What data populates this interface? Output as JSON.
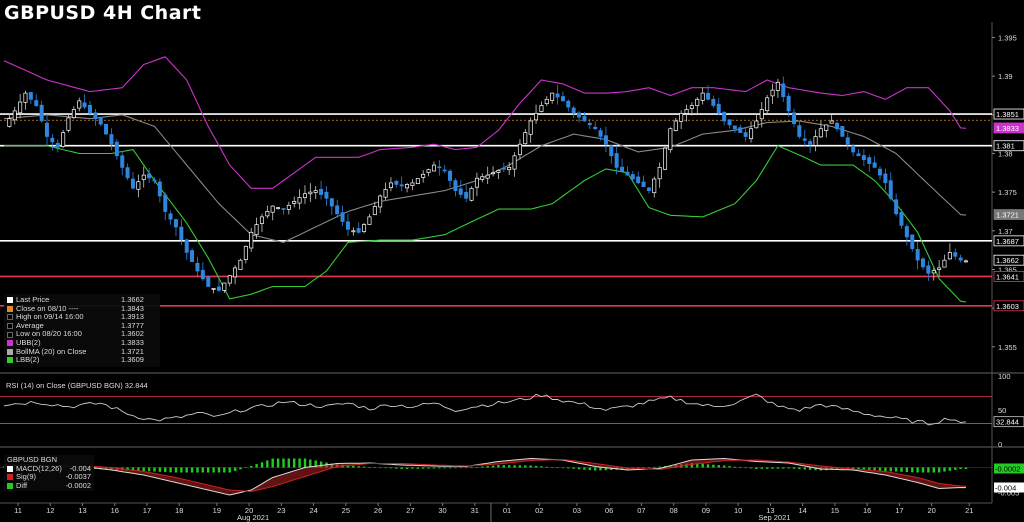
{
  "title": "GBPUSD 4H Chart",
  "colors": {
    "up": "#ffffff",
    "down": "#2e86de",
    "ubb": "#cc33cc",
    "lbb": "#33cc33",
    "ma": "#888888",
    "hline_white": "#ffffff",
    "hline_red": "#e8384f",
    "rsi": "#cccccc",
    "macd": "#ffffff",
    "signal": "#cc2222",
    "diff": "#22cc22"
  },
  "legend": [
    {
      "label": "Last Price",
      "value": "1.3662",
      "color": "#ffffff"
    },
    {
      "label": "Close on 08/10 ----",
      "value": "1.3843",
      "color": "#e08a1e"
    },
    {
      "label": "High on 09/14 16:00",
      "value": "1.3913",
      "color": "#000000"
    },
    {
      "label": "Average",
      "value": "1.3777",
      "color": "#000000"
    },
    {
      "label": "Low on 08/20 16:00",
      "value": "1.3602",
      "color": "#000000"
    },
    {
      "label": "UBB(2)",
      "value": "1.3833",
      "color": "#cc33cc"
    },
    {
      "label": "BollMA (20)  on Close",
      "value": "1.3721",
      "color": "#aaaaaa"
    },
    {
      "label": "LBB(2)",
      "value": "1.3609",
      "color": "#33cc33"
    }
  ],
  "rsi_label": "RSI (14)  on Close (GBPUSD BGN) 32.844",
  "macd_title": "GBPUSD BGN",
  "macd_legend": [
    {
      "label": "MACD(12,26)",
      "value": "-0.004",
      "color": "#ffffff"
    },
    {
      "label": "Sig(9)",
      "value": "-0.0037",
      "color": "#cc2222"
    },
    {
      "label": "Diff",
      "value": "-0.0002",
      "color": "#22cc22"
    }
  ],
  "price_ticks": [
    "1.395",
    "1.39",
    "1.385",
    "1.38",
    "1.375",
    "1.37",
    "1.365",
    "1.36",
    "1.355"
  ],
  "rsi_ticks": [
    "100",
    "50",
    "0"
  ],
  "macd_ticks": [
    "0",
    "-0.005"
  ],
  "price_tags": [
    {
      "value": 1.3851,
      "text": "1.3851",
      "bg": "#000000",
      "fg": "#ffffff",
      "border": "#ffffff"
    },
    {
      "value": 1.3833,
      "text": "1.3833",
      "bg": "#cc33cc",
      "fg": "#ffffff",
      "border": "#cc33cc"
    },
    {
      "value": 1.381,
      "text": "1.381",
      "bg": "#000000",
      "fg": "#ffffff",
      "border": "#ffffff"
    },
    {
      "value": 1.3721,
      "text": "1.3721",
      "bg": "#777777",
      "fg": "#ffffff",
      "border": "#777777"
    },
    {
      "value": 1.3687,
      "text": "1.3687",
      "bg": "#000000",
      "fg": "#ffffff",
      "border": "#ffffff"
    },
    {
      "value": 1.3662,
      "text": "1.3662",
      "bg": "#000000",
      "fg": "#ffffff",
      "border": "#ffffff"
    },
    {
      "value": 1.3641,
      "text": "1.3641",
      "bg": "#000000",
      "fg": "#ffffff",
      "border": "#e8384f"
    },
    {
      "value": 1.3603,
      "text": "1.3603",
      "bg": "#000000",
      "fg": "#ffffff",
      "border": "#e8384f"
    }
  ],
  "rsi_tag": {
    "value": 32.844,
    "text": "32.844"
  },
  "macd_tags": [
    {
      "value": -0.0002,
      "text": "-0.0002",
      "bg": "#22cc22",
      "fg": "#000000"
    },
    {
      "value": -0.004,
      "text": "-0.004",
      "bg": "#ffffff",
      "fg": "#000000"
    }
  ],
  "chart_data": {
    "type": "candlestick",
    "title": "GBPUSD 4H Chart",
    "xlabel": "",
    "ylabel": "",
    "ylim": [
      1.352,
      1.397
    ],
    "day_labels": [
      "11",
      "12",
      "13",
      "16",
      "17",
      "18",
      "19",
      "20",
      "23",
      "24",
      "25",
      "26",
      "27",
      "30",
      "31",
      "01",
      "02",
      "03",
      "06",
      "07",
      "08",
      "09",
      "10",
      "13",
      "14",
      "15",
      "16",
      "17",
      "20",
      "21"
    ],
    "month_labels": [
      {
        "text": "Aug 2021",
        "at_day_index": 7
      },
      {
        "text": "Sep 2021",
        "at_day_index": 23
      }
    ],
    "month_separator_day_index": 15,
    "horizontal_levels": [
      {
        "value": 1.3851,
        "color": "white"
      },
      {
        "value": 1.381,
        "color": "white"
      },
      {
        "value": 1.3687,
        "color": "white"
      },
      {
        "value": 1.3641,
        "color": "red"
      },
      {
        "value": 1.3603,
        "color": "red"
      }
    ],
    "close_dotted": 1.3843,
    "close_anchors": [
      [
        0,
        1.3835
      ],
      [
        2,
        1.3855
      ],
      [
        4,
        1.3878
      ],
      [
        6,
        1.3862
      ],
      [
        8,
        1.3822
      ],
      [
        10,
        1.3808
      ],
      [
        12,
        1.3846
      ],
      [
        14,
        1.3868
      ],
      [
        16,
        1.3852
      ],
      [
        18,
        1.3838
      ],
      [
        20,
        1.3812
      ],
      [
        22,
        1.3782
      ],
      [
        24,
        1.3755
      ],
      [
        26,
        1.3772
      ],
      [
        28,
        1.3765
      ],
      [
        30,
        1.3725
      ],
      [
        32,
        1.3705
      ],
      [
        34,
        1.3672
      ],
      [
        36,
        1.3648
      ],
      [
        38,
        1.3628
      ],
      [
        40,
        1.3623
      ],
      [
        42,
        1.3642
      ],
      [
        44,
        1.3662
      ],
      [
        46,
        1.3698
      ],
      [
        48,
        1.3718
      ],
      [
        50,
        1.3732
      ],
      [
        52,
        1.3728
      ],
      [
        54,
        1.3738
      ],
      [
        56,
        1.3748
      ],
      [
        58,
        1.3752
      ],
      [
        60,
        1.3742
      ],
      [
        62,
        1.3722
      ],
      [
        64,
        1.3702
      ],
      [
        66,
        1.3698
      ],
      [
        68,
        1.3718
      ],
      [
        70,
        1.3745
      ],
      [
        72,
        1.3762
      ],
      [
        74,
        1.3758
      ],
      [
        76,
        1.3762
      ],
      [
        78,
        1.3773
      ],
      [
        80,
        1.3785
      ],
      [
        82,
        1.3778
      ],
      [
        84,
        1.3752
      ],
      [
        86,
        1.3742
      ],
      [
        88,
        1.3768
      ],
      [
        90,
        1.3772
      ],
      [
        92,
        1.3778
      ],
      [
        94,
        1.3782
      ],
      [
        96,
        1.3812
      ],
      [
        98,
        1.3842
      ],
      [
        100,
        1.3862
      ],
      [
        102,
        1.3878
      ],
      [
        104,
        1.3868
      ],
      [
        106,
        1.3852
      ],
      [
        108,
        1.3842
      ],
      [
        110,
        1.3832
      ],
      [
        112,
        1.3812
      ],
      [
        114,
        1.3782
      ],
      [
        116,
        1.3772
      ],
      [
        118,
        1.3762
      ],
      [
        120,
        1.3752
      ],
      [
        122,
        1.3782
      ],
      [
        124,
        1.3832
      ],
      [
        126,
        1.3852
      ],
      [
        128,
        1.3862
      ],
      [
        130,
        1.3878
      ],
      [
        132,
        1.3862
      ],
      [
        134,
        1.3842
      ],
      [
        136,
        1.3832
      ],
      [
        138,
        1.3822
      ],
      [
        140,
        1.3842
      ],
      [
        142,
        1.3872
      ],
      [
        144,
        1.3892
      ],
      [
        146,
        1.3855
      ],
      [
        148,
        1.3822
      ],
      [
        150,
        1.3812
      ],
      [
        152,
        1.3832
      ],
      [
        154,
        1.3842
      ],
      [
        156,
        1.3822
      ],
      [
        158,
        1.3802
      ],
      [
        160,
        1.3792
      ],
      [
        162,
        1.3782
      ],
      [
        164,
        1.3762
      ],
      [
        166,
        1.3722
      ],
      [
        168,
        1.3692
      ],
      [
        170,
        1.3662
      ],
      [
        172,
        1.3645
      ],
      [
        174,
        1.3652
      ],
      [
        176,
        1.3672
      ],
      [
        178,
        1.3662
      ]
    ],
    "ubb_anchors": [
      [
        0,
        1.392
      ],
      [
        8,
        1.3895
      ],
      [
        16,
        1.388
      ],
      [
        22,
        1.3885
      ],
      [
        26,
        1.3915
      ],
      [
        30,
        1.3925
      ],
      [
        34,
        1.3895
      ],
      [
        38,
        1.3835
      ],
      [
        42,
        1.3785
      ],
      [
        46,
        1.3755
      ],
      [
        50,
        1.3755
      ],
      [
        54,
        1.3775
      ],
      [
        58,
        1.3795
      ],
      [
        62,
        1.3795
      ],
      [
        66,
        1.3795
      ],
      [
        70,
        1.3805
      ],
      [
        76,
        1.3808
      ],
      [
        80,
        1.3812
      ],
      [
        84,
        1.3805
      ],
      [
        88,
        1.3808
      ],
      [
        92,
        1.383
      ],
      [
        96,
        1.3865
      ],
      [
        100,
        1.3895
      ],
      [
        104,
        1.389
      ],
      [
        108,
        1.3878
      ],
      [
        112,
        1.3878
      ],
      [
        116,
        1.388
      ],
      [
        120,
        1.3885
      ],
      [
        124,
        1.3875
      ],
      [
        128,
        1.3885
      ],
      [
        132,
        1.3885
      ],
      [
        138,
        1.388
      ],
      [
        142,
        1.3895
      ],
      [
        146,
        1.3885
      ],
      [
        152,
        1.3878
      ],
      [
        156,
        1.3875
      ],
      [
        160,
        1.388
      ],
      [
        164,
        1.387
      ],
      [
        168,
        1.3885
      ],
      [
        172,
        1.3885
      ],
      [
        176,
        1.3855
      ],
      [
        178,
        1.3833
      ]
    ],
    "ma_anchors": [
      [
        0,
        1.3845
      ],
      [
        8,
        1.385
      ],
      [
        16,
        1.3845
      ],
      [
        22,
        1.385
      ],
      [
        28,
        1.3835
      ],
      [
        34,
        1.3785
      ],
      [
        40,
        1.3735
      ],
      [
        46,
        1.3695
      ],
      [
        52,
        1.3685
      ],
      [
        58,
        1.3705
      ],
      [
        64,
        1.3725
      ],
      [
        70,
        1.3738
      ],
      [
        76,
        1.3745
      ],
      [
        82,
        1.3752
      ],
      [
        88,
        1.3765
      ],
      [
        94,
        1.3785
      ],
      [
        100,
        1.381
      ],
      [
        106,
        1.3825
      ],
      [
        112,
        1.3818
      ],
      [
        118,
        1.3802
      ],
      [
        124,
        1.3808
      ],
      [
        130,
        1.3825
      ],
      [
        136,
        1.383
      ],
      [
        142,
        1.384
      ],
      [
        148,
        1.3842
      ],
      [
        154,
        1.3835
      ],
      [
        160,
        1.3822
      ],
      [
        166,
        1.38
      ],
      [
        172,
        1.376
      ],
      [
        178,
        1.3721
      ]
    ],
    "lbb_anchors": [
      [
        0,
        1.381
      ],
      [
        8,
        1.381
      ],
      [
        14,
        1.38
      ],
      [
        20,
        1.38
      ],
      [
        24,
        1.3805
      ],
      [
        28,
        1.3765
      ],
      [
        34,
        1.371
      ],
      [
        38,
        1.3665
      ],
      [
        42,
        1.3612
      ],
      [
        46,
        1.3618
      ],
      [
        50,
        1.3628
      ],
      [
        56,
        1.3628
      ],
      [
        60,
        1.3648
      ],
      [
        64,
        1.3685
      ],
      [
        70,
        1.3688
      ],
      [
        76,
        1.3688
      ],
      [
        82,
        1.3695
      ],
      [
        88,
        1.3715
      ],
      [
        92,
        1.3728
      ],
      [
        98,
        1.3728
      ],
      [
        102,
        1.3735
      ],
      [
        108,
        1.3765
      ],
      [
        112,
        1.378
      ],
      [
        116,
        1.3775
      ],
      [
        120,
        1.373
      ],
      [
        124,
        1.372
      ],
      [
        130,
        1.3718
      ],
      [
        136,
        1.3735
      ],
      [
        140,
        1.3765
      ],
      [
        144,
        1.381
      ],
      [
        148,
        1.3798
      ],
      [
        152,
        1.3785
      ],
      [
        158,
        1.3785
      ],
      [
        162,
        1.3765
      ],
      [
        166,
        1.3735
      ],
      [
        170,
        1.3698
      ],
      [
        174,
        1.3638
      ],
      [
        178,
        1.3609
      ]
    ],
    "rsi": {
      "ylim": [
        0,
        100
      ],
      "overbought": 70,
      "oversold": 30,
      "anchors": [
        [
          0,
          58
        ],
        [
          6,
          62
        ],
        [
          12,
          55
        ],
        [
          18,
          60
        ],
        [
          24,
          42
        ],
        [
          28,
          35
        ],
        [
          32,
          38
        ],
        [
          36,
          45
        ],
        [
          40,
          40
        ],
        [
          44,
          50
        ],
        [
          48,
          55
        ],
        [
          52,
          62
        ],
        [
          56,
          58
        ],
        [
          60,
          55
        ],
        [
          64,
          60
        ],
        [
          68,
          52
        ],
        [
          72,
          58
        ],
        [
          76,
          55
        ],
        [
          80,
          60
        ],
        [
          84,
          50
        ],
        [
          88,
          56
        ],
        [
          92,
          60
        ],
        [
          96,
          65
        ],
        [
          100,
          72
        ],
        [
          104,
          64
        ],
        [
          108,
          58
        ],
        [
          112,
          50
        ],
        [
          116,
          55
        ],
        [
          120,
          62
        ],
        [
          124,
          68
        ],
        [
          128,
          60
        ],
        [
          132,
          55
        ],
        [
          136,
          60
        ],
        [
          140,
          72
        ],
        [
          144,
          55
        ],
        [
          148,
          50
        ],
        [
          152,
          58
        ],
        [
          156,
          52
        ],
        [
          160,
          45
        ],
        [
          164,
          40
        ],
        [
          168,
          35
        ],
        [
          172,
          30
        ],
        [
          176,
          38
        ],
        [
          178,
          32.844
        ]
      ]
    },
    "macd": {
      "ylim": [
        -0.0065,
        0.0035
      ],
      "macd_anchors": [
        [
          0,
          0.0005
        ],
        [
          8,
          0.0004
        ],
        [
          14,
          0.0003
        ],
        [
          20,
          -0.0005
        ],
        [
          26,
          -0.0015
        ],
        [
          32,
          -0.003
        ],
        [
          38,
          -0.0045
        ],
        [
          42,
          -0.0055
        ],
        [
          46,
          -0.0045
        ],
        [
          50,
          -0.002
        ],
        [
          56,
          0.0
        ],
        [
          62,
          0.0008
        ],
        [
          68,
          0.0009
        ],
        [
          74,
          0.0005
        ],
        [
          80,
          0.0003
        ],
        [
          86,
          0.0002
        ],
        [
          92,
          0.0012
        ],
        [
          98,
          0.0018
        ],
        [
          104,
          0.0015
        ],
        [
          110,
          0.0002
        ],
        [
          116,
          -0.0005
        ],
        [
          122,
          -0.0002
        ],
        [
          128,
          0.0015
        ],
        [
          134,
          0.0018
        ],
        [
          140,
          0.0012
        ],
        [
          146,
          0.0009
        ],
        [
          152,
          -0.0003
        ],
        [
          158,
          -0.0005
        ],
        [
          164,
          -0.0015
        ],
        [
          170,
          -0.003
        ],
        [
          174,
          -0.0042
        ],
        [
          178,
          -0.004
        ]
      ],
      "signal_anchors": [
        [
          0,
          0.0003
        ],
        [
          8,
          0.0004
        ],
        [
          14,
          0.0004
        ],
        [
          20,
          0.0
        ],
        [
          26,
          -0.0008
        ],
        [
          32,
          -0.002
        ],
        [
          38,
          -0.0035
        ],
        [
          42,
          -0.0045
        ],
        [
          46,
          -0.0048
        ],
        [
          50,
          -0.0038
        ],
        [
          56,
          -0.0018
        ],
        [
          62,
          0.0002
        ],
        [
          68,
          0.0008
        ],
        [
          74,
          0.0008
        ],
        [
          80,
          0.0005
        ],
        [
          86,
          0.0003
        ],
        [
          92,
          0.0007
        ],
        [
          98,
          0.0014
        ],
        [
          104,
          0.0016
        ],
        [
          110,
          0.0008
        ],
        [
          116,
          -0.0001
        ],
        [
          122,
          -0.0004
        ],
        [
          128,
          0.0006
        ],
        [
          134,
          0.0014
        ],
        [
          140,
          0.0015
        ],
        [
          146,
          0.0011
        ],
        [
          152,
          0.0003
        ],
        [
          158,
          -0.0003
        ],
        [
          164,
          -0.0008
        ],
        [
          170,
          -0.002
        ],
        [
          174,
          -0.0032
        ],
        [
          178,
          -0.0037
        ]
      ]
    }
  }
}
